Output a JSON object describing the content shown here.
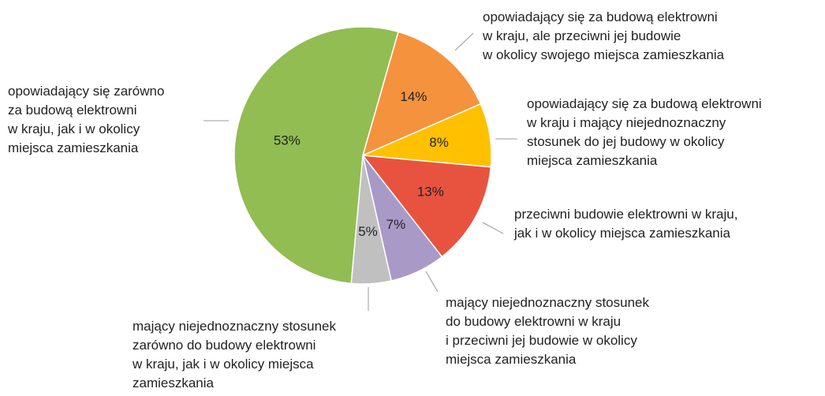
{
  "chart_data": {
    "type": "pie",
    "categories": [
      "opowiadający się za budową elektrowni\nw kraju, ale przeciwni jej budowie\nw okolicy swojego miejsca zamieszkania",
      "opowiadający się za budową elektrowni\nw kraju i mający niejednoznaczny\nstosunek do jej budowy w okolicy\nmiejsca zamieszkania",
      "przeciwni budowie elektrowni w kraju,\njak i w okolicy miejsca zamieszkania",
      "mający niejednoznaczny stosunek\ndo budowy elektrowni w kraju\ni przeciwni jej budowie w okolicy\nmiejsca zamieszkania",
      "mający niejednoznaczny stosunek\nzarówno do budowy elektrowni\nw kraju, jak i w okolicy miejsca\nzamieszkania",
      "opowiadający się zarówno\nza budową elektrowni\nw kraju, jak i w okolicy\nmiejsca zamieszkania"
    ],
    "values": [
      14,
      8,
      13,
      7,
      5,
      53
    ],
    "value_labels": [
      "14%",
      "8%",
      "13%",
      "7%",
      "5%",
      "53%"
    ],
    "colors": [
      "#f5923e",
      "#ffc000",
      "#e8533f",
      "#a999c7",
      "#c0c0c0",
      "#92bd52"
    ]
  }
}
